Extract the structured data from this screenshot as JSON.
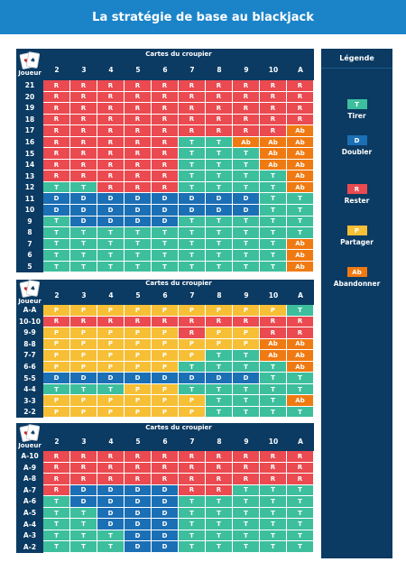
{
  "title": "La stratégie de base au blackjack",
  "dealer_header": "Cartes du croupier",
  "player_header": "Joueur",
  "dealer_cards": [
    "2",
    "3",
    "4",
    "5",
    "6",
    "7",
    "8",
    "9",
    "10",
    "A"
  ],
  "colors": {
    "T": "#3dbf9e",
    "D": "#1b6fb5",
    "R": "#ea4a50",
    "P": "#f6bf35",
    "Ab": "#f07a12"
  },
  "legend": {
    "title": "Légende",
    "items": [
      {
        "code": "T",
        "label": "Tirer"
      },
      {
        "code": "D",
        "label": "Doubler"
      },
      {
        "code": "R",
        "label": "Rester"
      },
      {
        "code": "P",
        "label": "Partager"
      },
      {
        "code": "Ab",
        "label": "Abandonner"
      }
    ]
  },
  "tables": [
    {
      "name": "hard",
      "rows": [
        {
          "label": "21",
          "cells": [
            "R",
            "R",
            "R",
            "R",
            "R",
            "R",
            "R",
            "R",
            "R",
            "R"
          ]
        },
        {
          "label": "20",
          "cells": [
            "R",
            "R",
            "R",
            "R",
            "R",
            "R",
            "R",
            "R",
            "R",
            "R"
          ]
        },
        {
          "label": "19",
          "cells": [
            "R",
            "R",
            "R",
            "R",
            "R",
            "R",
            "R",
            "R",
            "R",
            "R"
          ]
        },
        {
          "label": "18",
          "cells": [
            "R",
            "R",
            "R",
            "R",
            "R",
            "R",
            "R",
            "R",
            "R",
            "R"
          ]
        },
        {
          "label": "17",
          "cells": [
            "R",
            "R",
            "R",
            "R",
            "R",
            "R",
            "R",
            "R",
            "R",
            "Ab"
          ]
        },
        {
          "label": "16",
          "cells": [
            "R",
            "R",
            "R",
            "R",
            "R",
            "T",
            "T",
            "Ab",
            "Ab",
            "Ab"
          ]
        },
        {
          "label": "15",
          "cells": [
            "R",
            "R",
            "R",
            "R",
            "R",
            "T",
            "T",
            "T",
            "Ab",
            "Ab"
          ]
        },
        {
          "label": "14",
          "cells": [
            "R",
            "R",
            "R",
            "R",
            "R",
            "T",
            "T",
            "T",
            "Ab",
            "Ab"
          ]
        },
        {
          "label": "13",
          "cells": [
            "R",
            "R",
            "R",
            "R",
            "R",
            "T",
            "T",
            "T",
            "T",
            "Ab"
          ]
        },
        {
          "label": "12",
          "cells": [
            "T",
            "T",
            "R",
            "R",
            "R",
            "T",
            "T",
            "T",
            "T",
            "Ab"
          ]
        },
        {
          "label": "11",
          "cells": [
            "D",
            "D",
            "D",
            "D",
            "D",
            "D",
            "D",
            "D",
            "T",
            "T"
          ]
        },
        {
          "label": "10",
          "cells": [
            "D",
            "D",
            "D",
            "D",
            "D",
            "D",
            "D",
            "D",
            "T",
            "T"
          ]
        },
        {
          "label": "9",
          "cells": [
            "T",
            "D",
            "D",
            "D",
            "D",
            "T",
            "T",
            "T",
            "T",
            "T"
          ]
        },
        {
          "label": "8",
          "cells": [
            "T",
            "T",
            "T",
            "T",
            "T",
            "T",
            "T",
            "T",
            "T",
            "T"
          ]
        },
        {
          "label": "7",
          "cells": [
            "T",
            "T",
            "T",
            "T",
            "T",
            "T",
            "T",
            "T",
            "T",
            "Ab"
          ]
        },
        {
          "label": "6",
          "cells": [
            "T",
            "T",
            "T",
            "T",
            "T",
            "T",
            "T",
            "T",
            "T",
            "Ab"
          ]
        },
        {
          "label": "5",
          "cells": [
            "T",
            "T",
            "T",
            "T",
            "T",
            "T",
            "T",
            "T",
            "T",
            "Ab"
          ]
        }
      ]
    },
    {
      "name": "pairs",
      "rows": [
        {
          "label": "A-A",
          "cells": [
            "P",
            "P",
            "P",
            "P",
            "P",
            "P",
            "P",
            "P",
            "P",
            "T"
          ]
        },
        {
          "label": "10-10",
          "cells": [
            "R",
            "R",
            "R",
            "R",
            "R",
            "R",
            "R",
            "R",
            "R",
            "R"
          ]
        },
        {
          "label": "9-9",
          "cells": [
            "P",
            "P",
            "P",
            "P",
            "P",
            "R",
            "P",
            "P",
            "R",
            "R"
          ]
        },
        {
          "label": "8-8",
          "cells": [
            "P",
            "P",
            "P",
            "P",
            "P",
            "P",
            "P",
            "P",
            "Ab",
            "Ab"
          ]
        },
        {
          "label": "7-7",
          "cells": [
            "P",
            "P",
            "P",
            "P",
            "P",
            "P",
            "T",
            "T",
            "Ab",
            "Ab"
          ]
        },
        {
          "label": "6-6",
          "cells": [
            "P",
            "P",
            "P",
            "P",
            "P",
            "T",
            "T",
            "T",
            "T",
            "Ab"
          ]
        },
        {
          "label": "5-5",
          "cells": [
            "D",
            "D",
            "D",
            "D",
            "D",
            "D",
            "D",
            "D",
            "T",
            "T"
          ]
        },
        {
          "label": "4-4",
          "cells": [
            "T",
            "T",
            "T",
            "P",
            "P",
            "T",
            "T",
            "T",
            "T",
            "T"
          ]
        },
        {
          "label": "3-3",
          "cells": [
            "P",
            "P",
            "P",
            "P",
            "P",
            "P",
            "T",
            "T",
            "T",
            "Ab"
          ]
        },
        {
          "label": "2-2",
          "cells": [
            "P",
            "P",
            "P",
            "P",
            "P",
            "P",
            "T",
            "T",
            "T",
            "T"
          ]
        }
      ]
    },
    {
      "name": "soft",
      "rows": [
        {
          "label": "A-10",
          "cells": [
            "R",
            "R",
            "R",
            "R",
            "R",
            "R",
            "R",
            "R",
            "R",
            "R"
          ]
        },
        {
          "label": "A-9",
          "cells": [
            "R",
            "R",
            "R",
            "R",
            "R",
            "R",
            "R",
            "R",
            "R",
            "R"
          ]
        },
        {
          "label": "A-8",
          "cells": [
            "R",
            "R",
            "R",
            "R",
            "R",
            "R",
            "R",
            "R",
            "R",
            "R"
          ]
        },
        {
          "label": "A-7",
          "cells": [
            "R",
            "D",
            "D",
            "D",
            "D",
            "R",
            "R",
            "T",
            "T",
            "T"
          ]
        },
        {
          "label": "A-6",
          "cells": [
            "T",
            "D",
            "D",
            "D",
            "D",
            "T",
            "T",
            "T",
            "T",
            "T"
          ]
        },
        {
          "label": "A-5",
          "cells": [
            "T",
            "T",
            "D",
            "D",
            "D",
            "T",
            "T",
            "T",
            "T",
            "T"
          ]
        },
        {
          "label": "A-4",
          "cells": [
            "T",
            "T",
            "D",
            "D",
            "D",
            "T",
            "T",
            "T",
            "T",
            "T"
          ]
        },
        {
          "label": "A-3",
          "cells": [
            "T",
            "T",
            "T",
            "D",
            "D",
            "T",
            "T",
            "T",
            "T",
            "T"
          ]
        },
        {
          "label": "A-2",
          "cells": [
            "T",
            "T",
            "T",
            "D",
            "D",
            "T",
            "T",
            "T",
            "T",
            "T"
          ]
        }
      ]
    }
  ]
}
